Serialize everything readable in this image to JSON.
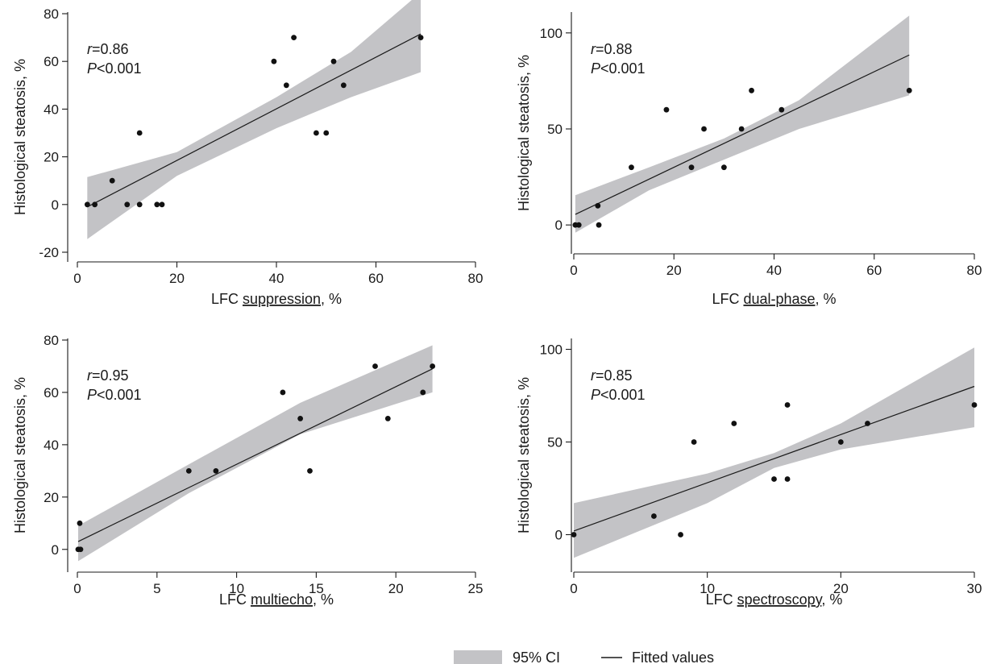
{
  "chart_data": [
    {
      "type": "scatter",
      "xlabel_prefix": "LFC ",
      "xlabel_underlined": "suppression",
      "xlabel_suffix": ", %",
      "ylabel": "Histological steatosis, %",
      "xlim": [
        0,
        80
      ],
      "ylim": [
        -20,
        80
      ],
      "xticks": [
        0,
        20,
        40,
        60,
        80
      ],
      "yticks": [
        -20,
        0,
        20,
        40,
        60,
        80
      ],
      "annotation": {
        "r_symbol": "r",
        "r_value": "=0.86",
        "p_symbol": "P",
        "p_value": "<0.001"
      },
      "points": [
        {
          "x": 2,
          "y": 0
        },
        {
          "x": 3.5,
          "y": 0
        },
        {
          "x": 7,
          "y": 10
        },
        {
          "x": 10,
          "y": 0
        },
        {
          "x": 12.5,
          "y": 30
        },
        {
          "x": 12.5,
          "y": 0
        },
        {
          "x": 16,
          "y": 0
        },
        {
          "x": 17,
          "y": 0
        },
        {
          "x": 39.5,
          "y": 60
        },
        {
          "x": 42,
          "y": 50
        },
        {
          "x": 43.5,
          "y": 70
        },
        {
          "x": 48,
          "y": 30
        },
        {
          "x": 50,
          "y": 30
        },
        {
          "x": 51.5,
          "y": 60
        },
        {
          "x": 53.5,
          "y": 50
        },
        {
          "x": 69,
          "y": 70
        }
      ],
      "fit": {
        "x": [
          2,
          69
        ],
        "y": [
          -1,
          71.5
        ]
      },
      "ci_upper": {
        "x": [
          2,
          20,
          40,
          55,
          69
        ],
        "y": [
          11.5,
          22,
          45,
          64,
          89
        ]
      },
      "ci_lower": {
        "x": [
          2,
          20,
          40,
          55,
          69
        ],
        "y": [
          -14.5,
          12,
          32,
          45,
          55.5
        ]
      }
    },
    {
      "type": "scatter",
      "xlabel_prefix": "LFC ",
      "xlabel_underlined": "dual-phase",
      "xlabel_suffix": ", %",
      "ylabel": "Histological steatosis, %",
      "xlim": [
        0,
        80
      ],
      "ylim": [
        -10,
        110
      ],
      "xticks": [
        0,
        20,
        40,
        60,
        80
      ],
      "yticks": [
        0,
        50,
        100
      ],
      "annotation": {
        "r_symbol": "r",
        "r_value": "=0.88",
        "p_symbol": "P",
        "p_value": "<0.001"
      },
      "points": [
        {
          "x": 0.3,
          "y": 0
        },
        {
          "x": 1,
          "y": 0
        },
        {
          "x": 4.8,
          "y": 10
        },
        {
          "x": 5,
          "y": 0
        },
        {
          "x": 11.5,
          "y": 30
        },
        {
          "x": 18.5,
          "y": 60
        },
        {
          "x": 23.5,
          "y": 30
        },
        {
          "x": 26,
          "y": 50
        },
        {
          "x": 30,
          "y": 30
        },
        {
          "x": 33.5,
          "y": 50
        },
        {
          "x": 35.5,
          "y": 70
        },
        {
          "x": 41.5,
          "y": 60
        },
        {
          "x": 67,
          "y": 70
        }
      ],
      "fit": {
        "x": [
          0.3,
          67
        ],
        "y": [
          5.5,
          88.5
        ]
      },
      "ci_upper": {
        "x": [
          0.3,
          15,
          30,
          45,
          67
        ],
        "y": [
          15.5,
          30,
          45,
          65,
          109
        ]
      },
      "ci_lower": {
        "x": [
          0.3,
          15,
          30,
          45,
          67
        ],
        "y": [
          -4,
          18,
          34,
          50,
          67.5
        ]
      }
    },
    {
      "type": "scatter",
      "xlabel_prefix": "LFC ",
      "xlabel_underlined": "multiecho",
      "xlabel_suffix": ", %",
      "ylabel": "Histological steatosis, %",
      "xlim": [
        0,
        25
      ],
      "ylim": [
        -5,
        80
      ],
      "xticks": [
        0,
        5,
        10,
        15,
        20,
        25
      ],
      "yticks": [
        0,
        20,
        40,
        60,
        80
      ],
      "annotation": {
        "r_symbol": "r",
        "r_value": "=0.95",
        "p_symbol": "P",
        "p_value": "<0.001"
      },
      "points": [
        {
          "x": 0.05,
          "y": 0
        },
        {
          "x": 0.15,
          "y": 10
        },
        {
          "x": 0.2,
          "y": 0
        },
        {
          "x": 7,
          "y": 30
        },
        {
          "x": 8.7,
          "y": 30
        },
        {
          "x": 12.9,
          "y": 60
        },
        {
          "x": 14,
          "y": 50
        },
        {
          "x": 14.6,
          "y": 30
        },
        {
          "x": 18.7,
          "y": 70
        },
        {
          "x": 19.5,
          "y": 50
        },
        {
          "x": 21.7,
          "y": 60
        },
        {
          "x": 22.3,
          "y": 70
        }
      ],
      "fit": {
        "x": [
          0.05,
          22.3
        ],
        "y": [
          3,
          69
        ]
      },
      "ci_upper": {
        "x": [
          0.05,
          7,
          14,
          22.3
        ],
        "y": [
          9,
          32.5,
          56,
          78
        ]
      },
      "ci_lower": {
        "x": [
          0.05,
          7,
          14,
          22.3
        ],
        "y": [
          -4.5,
          21.5,
          44,
          60
        ]
      }
    },
    {
      "type": "scatter",
      "xlabel_prefix": "LFC ",
      "xlabel_underlined": "spectroscopy",
      "xlabel_suffix": ", %",
      "ylabel": "Histological steatosis, %",
      "xlim": [
        0,
        30
      ],
      "ylim": [
        -15,
        105
      ],
      "xticks": [
        0,
        10,
        20,
        30
      ],
      "yticks": [
        0,
        50,
        100
      ],
      "annotation": {
        "r_symbol": "r",
        "r_value": "=0.85",
        "p_symbol": "P",
        "p_value": "<0.001"
      },
      "points": [
        {
          "x": 0,
          "y": 0
        },
        {
          "x": 6,
          "y": 10
        },
        {
          "x": 8,
          "y": 0
        },
        {
          "x": 9,
          "y": 50
        },
        {
          "x": 12,
          "y": 60
        },
        {
          "x": 15,
          "y": 30
        },
        {
          "x": 16,
          "y": 70
        },
        {
          "x": 16,
          "y": 30
        },
        {
          "x": 20,
          "y": 50
        },
        {
          "x": 22,
          "y": 60
        },
        {
          "x": 30,
          "y": 70
        }
      ],
      "fit": {
        "x": [
          0,
          30
        ],
        "y": [
          2,
          80
        ]
      },
      "ci_upper": {
        "x": [
          0,
          10,
          15,
          20,
          30
        ],
        "y": [
          17,
          33,
          44,
          60,
          101
        ]
      },
      "ci_lower": {
        "x": [
          0,
          10,
          15,
          20,
          30
        ],
        "y": [
          -12.5,
          17,
          36,
          46,
          58
        ]
      }
    }
  ],
  "legend": {
    "ci_label": "95% CI",
    "fit_label": "Fitted values",
    "ci_color": "#c3c3c6",
    "fit_color": "#1a1a1a"
  },
  "colors": {
    "band": "#c3c3c6",
    "line": "#1a1a1a",
    "point": "#111111",
    "axis": "#1a1a1a"
  }
}
